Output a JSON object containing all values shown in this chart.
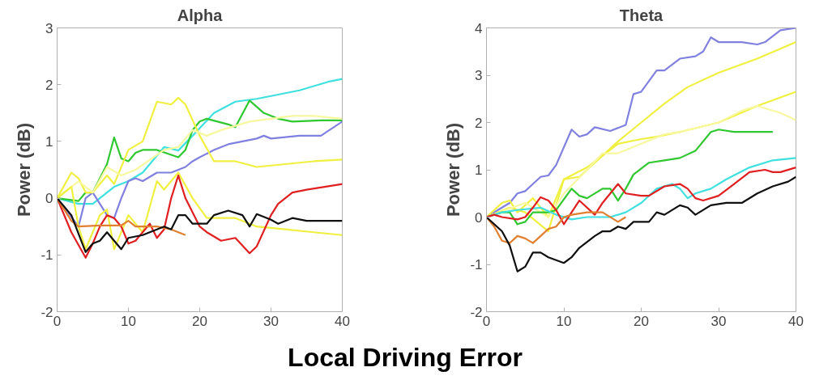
{
  "chart_data": [
    {
      "type": "line",
      "title": "Alpha",
      "ylabel": "Power (dB)",
      "xlim": [
        0,
        40
      ],
      "ylim": [
        -2,
        3
      ],
      "xticks": [
        0,
        10,
        20,
        30,
        40
      ],
      "yticks": [
        -2,
        -1,
        0,
        1,
        2,
        3
      ],
      "grid": false,
      "annotations": [
        "Local Driving Error"
      ],
      "series": [
        {
          "color": "#40e0e0",
          "x": [
            0,
            3,
            5,
            8,
            10,
            12,
            15,
            17,
            19,
            22,
            25,
            28,
            30,
            34,
            38,
            40
          ],
          "values": [
            0,
            -0.1,
            -0.1,
            0.2,
            0.3,
            0.45,
            0.9,
            0.84,
            1.1,
            1.5,
            1.7,
            1.75,
            1.8,
            1.9,
            2.05,
            2.1
          ]
        },
        {
          "color": "#30c830",
          "x": [
            0,
            3,
            4,
            5,
            7,
            8,
            9,
            10,
            11,
            12,
            14,
            17,
            18,
            19,
            20,
            21,
            24,
            25,
            27,
            29,
            31,
            33,
            37,
            40
          ],
          "values": [
            0,
            -0.05,
            0.1,
            0.1,
            0.6,
            1.07,
            0.7,
            0.65,
            0.8,
            0.85,
            0.85,
            0.72,
            0.85,
            1.2,
            1.35,
            1.4,
            1.3,
            1.25,
            1.72,
            1.5,
            1.4,
            1.35,
            1.37,
            1.37
          ]
        },
        {
          "color": "#8080e0",
          "x": [
            0,
            3,
            4,
            5,
            6,
            7,
            8,
            9,
            10,
            11,
            12,
            14,
            16,
            18,
            19,
            20,
            22,
            24,
            26,
            28,
            29,
            30,
            34,
            37,
            40
          ],
          "values": [
            0,
            -0.5,
            0,
            0.1,
            -0.1,
            -0.3,
            -0.35,
            0,
            0.3,
            0.35,
            0.3,
            0.45,
            0.45,
            0.55,
            0.65,
            0.72,
            0.85,
            0.95,
            1.0,
            1.05,
            1.1,
            1.05,
            1.1,
            1.1,
            1.35
          ]
        },
        {
          "color": "#f0f040",
          "x": [
            0,
            2,
            3,
            4,
            5,
            7,
            8,
            10,
            12,
            14,
            16,
            17,
            18,
            20,
            22,
            25,
            28,
            32,
            36,
            40
          ],
          "values": [
            0,
            0.45,
            0.35,
            0.1,
            0.1,
            0.4,
            0.25,
            0.85,
            1.0,
            1.7,
            1.65,
            1.77,
            1.65,
            1.1,
            0.65,
            0.65,
            0.55,
            0.6,
            0.65,
            0.68
          ]
        },
        {
          "color": "#f8f8a0",
          "x": [
            0,
            3,
            5,
            7,
            9,
            11,
            15,
            17,
            19,
            21,
            23,
            27,
            30,
            33,
            36,
            40
          ],
          "values": [
            0,
            0.3,
            0.1,
            0.55,
            0.4,
            0.5,
            0.85,
            0.9,
            1.2,
            1.1,
            1.2,
            1.35,
            1.4,
            1.45,
            1.45,
            1.4
          ]
        },
        {
          "color": "#f0f040",
          "x": [
            0,
            2,
            3,
            4,
            6,
            7,
            8,
            10,
            12,
            14,
            15,
            17,
            19,
            21,
            25,
            28,
            32,
            36,
            40
          ],
          "values": [
            0,
            0.2,
            -0.5,
            -0.9,
            -0.3,
            -0.2,
            -0.9,
            -0.3,
            -0.6,
            0.3,
            0.15,
            0.45,
            0,
            -0.35,
            -0.35,
            -0.5,
            -0.55,
            -0.6,
            -0.65
          ]
        },
        {
          "color": "#e02020",
          "x": [
            0,
            2,
            4,
            5,
            6,
            7,
            8,
            9,
            10,
            11,
            13,
            14,
            15,
            16,
            17,
            18,
            20,
            21,
            23,
            25,
            27,
            28,
            30,
            31,
            33,
            35,
            40
          ],
          "values": [
            0,
            -0.6,
            -1.05,
            -0.8,
            -0.5,
            -0.3,
            -0.35,
            -0.5,
            -0.8,
            -0.75,
            -0.45,
            -0.7,
            -0.55,
            0,
            0.4,
            0,
            -0.5,
            -0.6,
            -0.75,
            -0.7,
            -0.97,
            -0.85,
            -0.3,
            -0.1,
            0.1,
            0.15,
            0.25
          ]
        },
        {
          "color": "#e08030",
          "x": [
            0,
            2,
            3,
            6,
            9,
            10,
            11,
            14,
            16,
            18
          ],
          "values": [
            0,
            -0.4,
            -0.5,
            -0.48,
            -0.48,
            -0.4,
            -0.5,
            -0.5,
            -0.55,
            -0.65
          ]
        },
        {
          "color": "#101010",
          "x": [
            0,
            2,
            4,
            5,
            6,
            7,
            9,
            10,
            12,
            13,
            15,
            16,
            17,
            18,
            19,
            21,
            22,
            24,
            26,
            27,
            28,
            30,
            31,
            33,
            35,
            40
          ],
          "values": [
            0,
            -0.3,
            -0.95,
            -0.8,
            -0.75,
            -0.6,
            -0.9,
            -0.7,
            -0.65,
            -0.6,
            -0.5,
            -0.55,
            -0.3,
            -0.3,
            -0.45,
            -0.45,
            -0.3,
            -0.22,
            -0.3,
            -0.5,
            -0.28,
            -0.38,
            -0.45,
            -0.35,
            -0.4,
            -0.4
          ]
        }
      ]
    },
    {
      "type": "line",
      "title": "Theta",
      "ylabel": "Power (dB)",
      "xlim": [
        0,
        40
      ],
      "ylim": [
        -2,
        4
      ],
      "xticks": [
        0,
        10,
        20,
        30,
        40
      ],
      "yticks": [
        -2,
        -1,
        0,
        1,
        2,
        3,
        4
      ],
      "grid": false,
      "series": [
        {
          "color": "#8080e0",
          "x": [
            0,
            2,
            3,
            4,
            5,
            6,
            7,
            8,
            9,
            11,
            12,
            13,
            14,
            16,
            18,
            19,
            20,
            22,
            23,
            25,
            27,
            28,
            29,
            30,
            33,
            35,
            36,
            38,
            40
          ],
          "values": [
            0,
            0.2,
            0.3,
            0.5,
            0.55,
            0.7,
            0.85,
            0.88,
            1.1,
            1.85,
            1.7,
            1.75,
            1.9,
            1.82,
            1.95,
            2.6,
            2.65,
            3.1,
            3.1,
            3.35,
            3.4,
            3.5,
            3.8,
            3.7,
            3.7,
            3.65,
            3.7,
            3.95,
            4.0
          ]
        },
        {
          "color": "#f0f040",
          "x": [
            0,
            2,
            3,
            4,
            6,
            7,
            8,
            10,
            12,
            14,
            17,
            20,
            23,
            26,
            30,
            35,
            40
          ],
          "values": [
            0,
            0.3,
            0.35,
            0.1,
            0.4,
            0.2,
            0,
            0.8,
            0.85,
            1.15,
            1.6,
            2.0,
            2.4,
            2.75,
            3.05,
            3.35,
            3.7
          ]
        },
        {
          "color": "#f0f040",
          "x": [
            0,
            3,
            5,
            8,
            10,
            13,
            17,
            20,
            22,
            25,
            30,
            35,
            40
          ],
          "values": [
            0,
            0.2,
            0.1,
            -0.3,
            0.8,
            1.05,
            1.55,
            1.65,
            1.7,
            1.8,
            2.0,
            2.35,
            2.65
          ]
        },
        {
          "color": "#f8f8a0",
          "x": [
            0,
            5,
            8,
            10,
            13,
            15,
            17,
            20,
            23,
            25,
            30,
            33,
            35,
            38,
            40
          ],
          "values": [
            0,
            0.3,
            0,
            0.5,
            1.0,
            1.35,
            1.35,
            1.55,
            1.75,
            1.8,
            2.0,
            2.25,
            2.35,
            2.2,
            2.05
          ]
        },
        {
          "color": "#30c830",
          "x": [
            0,
            2,
            3,
            4,
            5,
            6,
            8,
            9,
            11,
            12,
            13,
            15,
            16,
            17,
            18,
            19,
            21,
            23,
            25,
            27,
            29,
            30,
            32,
            34,
            37
          ],
          "values": [
            0,
            0.1,
            0.1,
            -0.15,
            -0.1,
            0.1,
            0.1,
            0.15,
            0.6,
            0.45,
            0.4,
            0.6,
            0.6,
            0.35,
            0.6,
            0.9,
            1.15,
            1.2,
            1.25,
            1.4,
            1.8,
            1.85,
            1.8,
            1.8,
            1.8
          ]
        },
        {
          "color": "#40e0e0",
          "x": [
            0,
            2,
            4,
            7,
            9,
            11,
            13,
            16,
            18,
            20,
            22,
            24,
            25,
            26,
            27,
            29,
            31,
            34,
            37,
            40
          ],
          "values": [
            0,
            0.1,
            0.15,
            0.2,
            0.05,
            -0.05,
            0,
            0,
            0.1,
            0.3,
            0.6,
            0.7,
            0.6,
            0.4,
            0.5,
            0.6,
            0.8,
            1.05,
            1.2,
            1.25
          ]
        },
        {
          "color": "#e02020",
          "x": [
            0,
            1,
            2,
            4,
            5,
            6,
            7,
            8,
            9,
            10,
            11,
            12,
            14,
            15,
            17,
            18,
            20,
            21,
            23,
            25,
            26,
            27,
            28,
            30,
            32,
            34,
            36,
            37,
            38,
            40
          ],
          "values": [
            0,
            0.05,
            0,
            -0.05,
            0,
            0.2,
            0.42,
            0.35,
            0.15,
            -0.15,
            0.1,
            0.35,
            0.05,
            0.3,
            0.7,
            0.5,
            0.45,
            0.45,
            0.65,
            0.7,
            0.6,
            0.4,
            0.35,
            0.45,
            0.7,
            0.95,
            1.0,
            0.95,
            0.95,
            1.05
          ]
        },
        {
          "color": "#e08030",
          "x": [
            0,
            1,
            2,
            3,
            4,
            5,
            6,
            7,
            8,
            9,
            10,
            11,
            13,
            15,
            17,
            18
          ],
          "values": [
            0,
            -0.2,
            -0.5,
            -0.55,
            -0.4,
            -0.45,
            -0.55,
            -0.4,
            -0.25,
            -0.2,
            0,
            0.05,
            0.1,
            0.1,
            -0.1,
            0
          ]
        },
        {
          "color": "#101010",
          "x": [
            0,
            2,
            3,
            4,
            5,
            6,
            7,
            8,
            10,
            11,
            12,
            14,
            15,
            16,
            17,
            18,
            19,
            21,
            22,
            23,
            25,
            26,
            27,
            29,
            31,
            33,
            35,
            37,
            39,
            40
          ],
          "values": [
            0,
            -0.3,
            -0.6,
            -1.15,
            -1.05,
            -0.75,
            -0.75,
            -0.85,
            -0.97,
            -0.85,
            -0.65,
            -0.4,
            -0.3,
            -0.3,
            -0.2,
            -0.25,
            -0.1,
            -0.1,
            0.1,
            0.05,
            0.25,
            0.2,
            0.05,
            0.25,
            0.3,
            0.3,
            0.5,
            0.65,
            0.75,
            0.85
          ]
        }
      ]
    }
  ]
}
